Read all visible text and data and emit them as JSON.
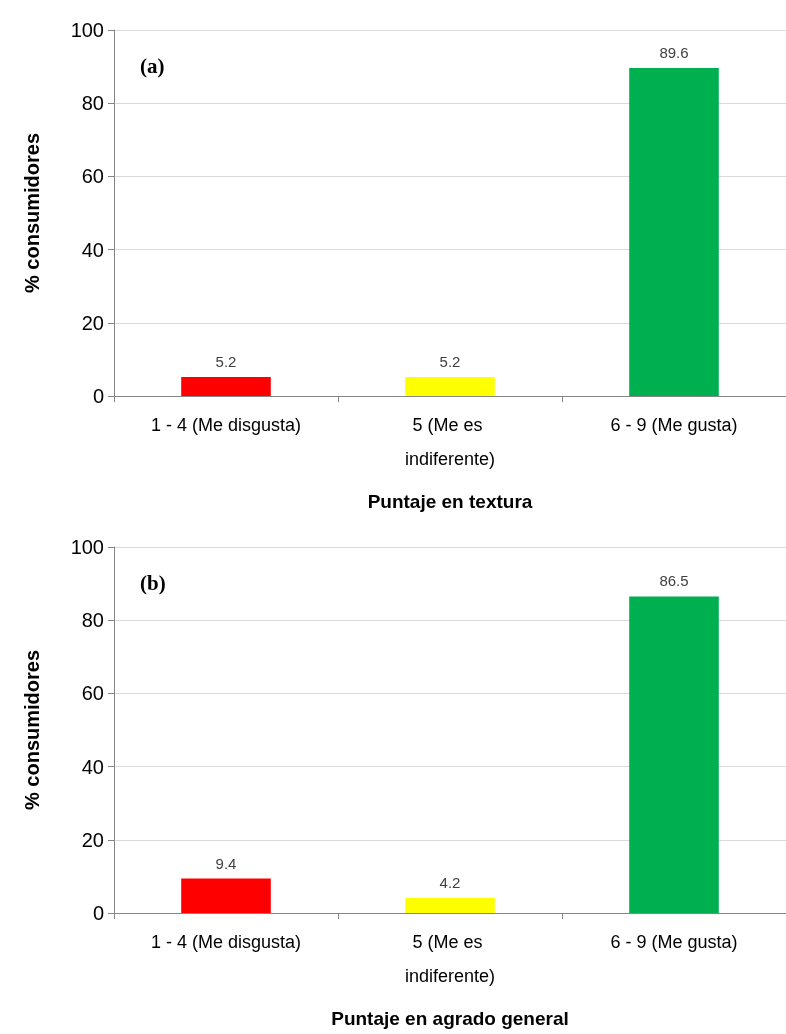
{
  "chart_data": [
    {
      "type": "bar",
      "categories": [
        "1 - 4 (Me disgusta)",
        "5 (Me es indiferente)",
        "6 - 9 (Me gusta)"
      ],
      "values": [
        5.2,
        5.2,
        89.6
      ],
      "colors": [
        "#ff0000",
        "#ffff00",
        "#00b050"
      ],
      "xlabel": "Puntaje en textura",
      "ylabel": "% consumidores",
      "ylim": [
        0,
        100
      ],
      "yticks": [
        0,
        20,
        40,
        60,
        80,
        100
      ],
      "data_labels": true,
      "grid": "y",
      "annotations": [
        "(a)"
      ]
    },
    {
      "type": "bar",
      "categories": [
        "1 - 4 (Me disgusta)",
        "5 (Me es indiferente)",
        "6 - 9 (Me gusta)"
      ],
      "values": [
        9.4,
        4.2,
        86.5
      ],
      "colors": [
        "#ff0000",
        "#ffff00",
        "#00b050"
      ],
      "xlabel": "Puntaje en agrado general",
      "ylabel": "% consumidores",
      "ylim": [
        0,
        100
      ],
      "yticks": [
        0,
        20,
        40,
        60,
        80,
        100
      ],
      "data_labels": true,
      "grid": "y",
      "annotations": [
        "(b)"
      ]
    }
  ]
}
